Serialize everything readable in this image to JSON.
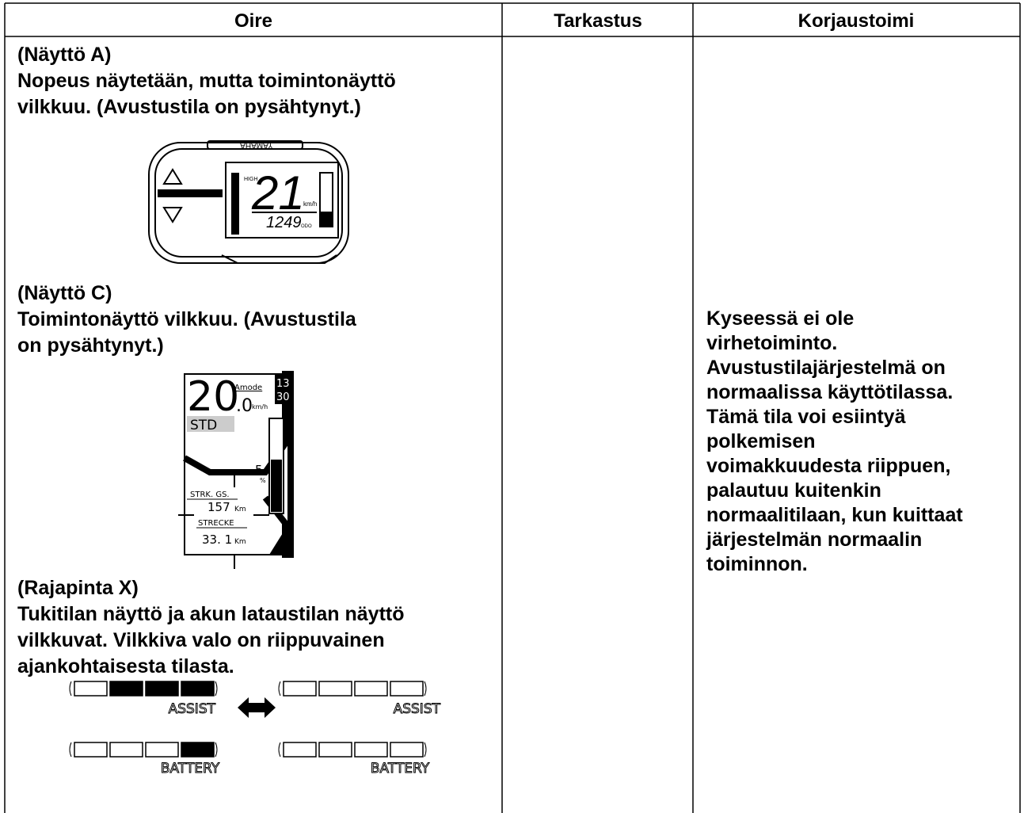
{
  "header": [
    "Oire",
    "Tarkastus",
    "Korjaustoimi"
  ],
  "symptoms": [
    {
      "label": "(Näyttö A)",
      "lines": [
        "Nopeus näytetään, mutta toimintonäyttö",
        "vilkkuu. (Avustustila on pysähtynyt.)"
      ]
    },
    {
      "label": "(Näyttö C)",
      "lines": [
        "Toimintonäyttö vilkkuu. (Avustustila",
        "on pysähtynyt.)"
      ]
    },
    {
      "label": "(Rajapinta X)",
      "lines": [
        "Tukitilan näyttö ja akun lataustilan näyttö",
        "vilkkuvat. Vilkkiva valo on riippuvainen",
        "ajankohtaisesta tilasta."
      ]
    }
  ],
  "remedy_lines": [
    "Kyseessä ei ole",
    "virhetoiminto.",
    "Avustustilajärjestelmä on",
    "normaalissa käyttötilassa.",
    "Tämä tila voi esiintyä",
    "polkemisen",
    "voimakkuudesta riippuen,",
    "palautuu kuitenkin",
    "normaalitilaan, kun kuittaat",
    "järjestelmän normaalin",
    "toiminnon."
  ],
  "display_a": {
    "brand": "YAMAHA",
    "mode": "HIGH",
    "speed": "21",
    "unit": "km/h",
    "odometer": "1249",
    "odo_label": "ODO"
  },
  "display_c": {
    "mode": "Amode",
    "speed": "20",
    "decimal": ".0",
    "unit": "km/h",
    "hour": "13",
    "minute": "30",
    "assist": "STD",
    "battery": "54",
    "percent": "%",
    "trip_label": "STRK. GS.",
    "trip": "157",
    "distance_unit": "Km",
    "odo_label": "STRECKE",
    "odo": "33. 1"
  },
  "interface_x": {
    "assist": "ASSIST",
    "battery": "BATTERY"
  }
}
